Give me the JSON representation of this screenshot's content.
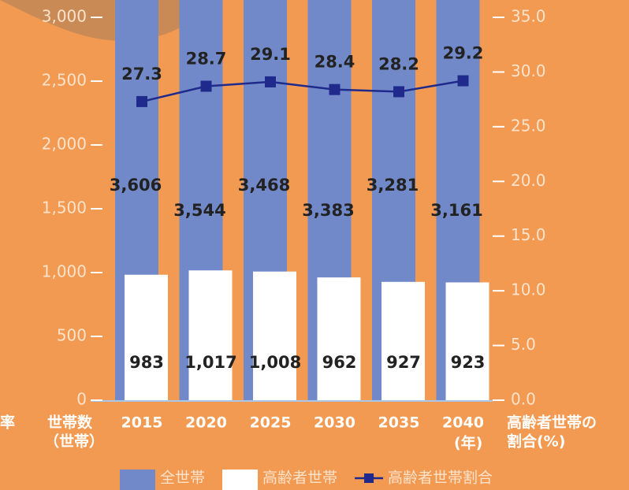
{
  "chart_data": {
    "type": "bar",
    "categories": [
      "2015",
      "2020",
      "2025",
      "2030",
      "2035",
      "2040"
    ],
    "series": [
      {
        "name": "全世帯",
        "color": "#7189c9",
        "values": [
          3606,
          3544,
          3468,
          3383,
          3281,
          3161
        ],
        "value_labels": [
          "3,606",
          "3,544",
          "3,468",
          "3,383",
          "3,281",
          "3,161"
        ]
      },
      {
        "name": "高齢者世帯",
        "color": "#ffffff",
        "values": [
          983,
          1017,
          1008,
          962,
          927,
          923
        ],
        "value_labels": [
          "983",
          "1,017",
          "1,008",
          "962",
          "927",
          "923"
        ]
      },
      {
        "name": "高齢者世帯割合",
        "type": "line",
        "axis": "y2",
        "color": "#1f2a8c",
        "values": [
          27.3,
          28.7,
          29.1,
          28.4,
          28.2,
          29.2
        ]
      }
    ],
    "ylim": [
      0,
      3000
    ],
    "yticks": [
      0,
      500,
      {
        "value": 1000,
        "label": "1,000"
      },
      {
        "value": 1500,
        "label": "1,500"
      },
      {
        "value": 2000,
        "label": "2,000"
      },
      {
        "value": 2500,
        "label": "2,500"
      },
      {
        "value": 3000,
        "label": "3,000"
      }
    ],
    "y2lim": [
      0,
      35
    ],
    "y2ticks": [
      {
        "value": 0,
        "label": "0.0"
      },
      {
        "value": 5,
        "label": "5.0"
      },
      {
        "value": 10,
        "label": "10.0"
      },
      {
        "value": 15,
        "label": "15.0"
      },
      {
        "value": 20,
        "label": "20.0"
      },
      {
        "value": 25,
        "label": "25.0"
      },
      {
        "value": 30,
        "label": "30.0"
      },
      {
        "value": 35,
        "label": "35.0"
      }
    ],
    "ylabel": [
      "世帯数",
      "（世帯）"
    ],
    "y2label": [
      "高齢者世帯の",
      "割合(%)"
    ],
    "xlabel": "(年)",
    "annotation": "率"
  }
}
